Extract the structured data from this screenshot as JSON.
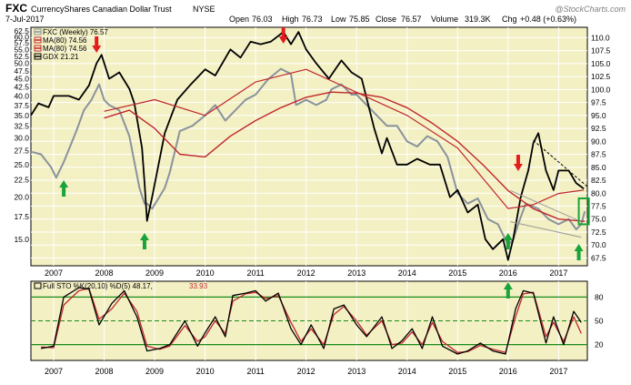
{
  "header": {
    "symbol": "FXC",
    "name": "CurrencyShares Canadian Dollar Trust",
    "exchange": "NYSE",
    "date": "7-Jul-2017",
    "open_label": "Open",
    "open": "76.03",
    "high_label": "High",
    "high": "76.73",
    "low_label": "Low",
    "low": "75.85",
    "close_label": "Close",
    "close": "76.57",
    "volume_label": "Volume",
    "volume": "319.3K",
    "chg_label": "Chg",
    "chg": "+0.48 (+0.63%)",
    "logo": "@StockCharts.com"
  },
  "colors": {
    "background": "#ffffff",
    "panel_bg": "#f3f0c4",
    "fxc": "#8a939c",
    "gdx": "#000000",
    "ma80": "#c0272d",
    "sto_k": "#000000",
    "sto_d": "#c0272d",
    "sto_level": "#1a8c1a",
    "down_arrow": "#e31d1d",
    "up_arrow": "#1aa33a",
    "box": "#1aa33a",
    "trend": "#000000",
    "channel": "#999999"
  },
  "chart_data": [
    {
      "type": "line",
      "legend": [
        {
          "label": "FXC (Weekly) 76.57",
          "color": "#8a939c"
        },
        {
          "label": "MA(80) 74.56",
          "color": "#c0272d"
        },
        {
          "label": "MA(80) 74.56",
          "color": "#c0272d"
        },
        {
          "label": "GDX 21.21",
          "color": "#000000"
        }
      ],
      "x_ticks": [
        "2007",
        "2008",
        "2009",
        "2010",
        "2011",
        "2012",
        "2013",
        "2014",
        "2015",
        "2016",
        "2017"
      ],
      "x_range": [
        2006.55,
        2017.57
      ],
      "left_axis_ticks": [
        "62.5",
        "60.0",
        "57.5",
        "55.0",
        "52.5",
        "50.0",
        "47.5",
        "45.0",
        "42.5",
        "40.0",
        "37.5",
        "35.0",
        "32.5",
        "30.0",
        "27.5",
        "25.0",
        "22.5",
        "20.0",
        "17.5",
        "15.0"
      ],
      "left_axis_range": [
        12.5,
        64
      ],
      "left_axis_scale": "log",
      "right_axis_ticks": [
        "110.0",
        "107.5",
        "105.0",
        "102.5",
        "100.0",
        "97.5",
        "95.0",
        "92.5",
        "90.0",
        "87.5",
        "85.0",
        "82.5",
        "80.0",
        "77.5",
        "75.0",
        "72.5",
        "70.0",
        "67.5"
      ],
      "right_axis_range": [
        66,
        112
      ],
      "series": [
        {
          "name": "FXC (Weekly)",
          "axis": "right",
          "x": [
            2006.55,
            2006.75,
            2006.95,
            2007.05,
            2007.2,
            2007.45,
            2007.6,
            2007.75,
            2007.85,
            2007.9,
            2008.0,
            2008.1,
            2008.3,
            2008.5,
            2008.6,
            2008.7,
            2008.8,
            2008.85,
            2008.95,
            2009.2,
            2009.3,
            2009.5,
            2009.75,
            2010.0,
            2010.2,
            2010.4,
            2010.6,
            2010.8,
            2011.0,
            2011.25,
            2011.5,
            2011.7,
            2011.8,
            2012.0,
            2012.2,
            2012.4,
            2012.5,
            2012.7,
            2012.9,
            2013.0,
            2013.2,
            2013.4,
            2013.6,
            2013.8,
            2014.0,
            2014.2,
            2014.4,
            2014.6,
            2014.8,
            2015.0,
            2015.2,
            2015.4,
            2015.6,
            2015.8,
            2016.0,
            2016.1,
            2016.2,
            2016.35,
            2016.6,
            2016.8,
            2017.0,
            2017.2,
            2017.35,
            2017.45,
            2017.52
          ],
          "y": [
            88,
            87.5,
            85,
            83,
            86,
            92,
            96,
            98,
            100,
            101,
            98,
            97,
            96,
            91,
            86,
            81,
            78,
            78,
            77,
            81,
            84,
            92,
            93,
            95,
            97,
            94,
            96,
            98,
            99,
            102,
            104,
            103,
            97,
            98,
            97,
            98,
            100,
            101,
            99,
            99,
            97,
            95,
            93,
            93,
            90,
            89,
            91,
            90,
            87,
            80,
            78,
            79,
            75,
            74,
            70,
            71,
            74,
            78,
            77,
            75,
            74,
            75,
            73,
            74,
            76.5
          ]
        },
        {
          "name": "MA(80)",
          "axis": "right",
          "x": [
            2008.0,
            2008.5,
            2009.0,
            2009.5,
            2010.0,
            2010.5,
            2011.0,
            2011.5,
            2012.0,
            2012.5,
            2013.0,
            2013.5,
            2014.0,
            2014.5,
            2015.0,
            2015.5,
            2016.0,
            2016.5,
            2017.0,
            2017.52
          ],
          "y": [
            94.5,
            96,
            92.5,
            87.5,
            87,
            91,
            94,
            96.5,
            98.5,
            99.5,
            99.3,
            98.5,
            96.5,
            93.5,
            90,
            85.5,
            80.5,
            77,
            75,
            74.56
          ]
        },
        {
          "name": "GDX",
          "axis": "left",
          "x": [
            2006.55,
            2006.7,
            2006.9,
            2007.0,
            2007.3,
            2007.5,
            2007.7,
            2007.85,
            2007.95,
            2008.1,
            2008.3,
            2008.5,
            2008.6,
            2008.75,
            2008.8,
            2008.85,
            2008.95,
            2009.2,
            2009.45,
            2009.7,
            2010.0,
            2010.2,
            2010.5,
            2010.7,
            2010.9,
            2011.1,
            2011.3,
            2011.55,
            2011.7,
            2011.85,
            2012.0,
            2012.2,
            2012.45,
            2012.7,
            2012.9,
            2013.1,
            2013.35,
            2013.5,
            2013.6,
            2013.8,
            2014.0,
            2014.2,
            2014.45,
            2014.65,
            2014.85,
            2015.0,
            2015.2,
            2015.4,
            2015.55,
            2015.7,
            2015.9,
            2016.0,
            2016.1,
            2016.25,
            2016.4,
            2016.5,
            2016.6,
            2016.75,
            2016.9,
            2017.0,
            2017.2,
            2017.35,
            2017.5
          ],
          "y": [
            35,
            38,
            37,
            40,
            40,
            39,
            43,
            50,
            53,
            45,
            47,
            42,
            38,
            28,
            22,
            17,
            20,
            31,
            39,
            43,
            48,
            46,
            55,
            52,
            58,
            57,
            58,
            62,
            57,
            62,
            55,
            50,
            45,
            51,
            47,
            45,
            32,
            27,
            30,
            25,
            25,
            26,
            25,
            25,
            20,
            21,
            18,
            19,
            15,
            14,
            15,
            13,
            15,
            20,
            24,
            29,
            31,
            24,
            21,
            24,
            24,
            22,
            21.2
          ]
        },
        {
          "name": "MA(80)",
          "axis": "left",
          "x": [
            2008.0,
            2009.0,
            2010.0,
            2011.0,
            2012.0,
            2013.0,
            2014.0,
            2015.0,
            2016.0,
            2016.5,
            2017.0,
            2017.5
          ],
          "y": [
            36,
            39,
            35,
            44,
            48,
            41,
            35,
            28,
            18.5,
            19,
            20.5,
            21
          ]
        }
      ],
      "annotations": {
        "down_arrows_x": [
          2007.85,
          2011.55,
          2016.2
        ],
        "up_arrows_x": [
          2007.2,
          2008.8,
          2016.0,
          2017.4
        ],
        "resistance_line": {
          "x": [
            2016.5,
            2017.57
          ],
          "y_left": [
            29.5,
            21.5
          ]
        },
        "channel_upper": {
          "x": [
            2016.05,
            2017.45
          ],
          "y_right": [
            80.5,
            74.5
          ]
        },
        "channel_lower": {
          "x": [
            2016.05,
            2017.45
          ],
          "y_right": [
            74.5,
            71.5
          ]
        },
        "box": {
          "x": [
            2017.4,
            2017.6
          ],
          "y_right": [
            74,
            79
          ]
        }
      }
    },
    {
      "type": "line",
      "legend": [
        {
          "label": "Full STO %K(20,10) %D(5) 48.17,",
          "color": "#000000"
        },
        {
          "label": "33.93",
          "color": "#c0272d"
        }
      ],
      "x_ticks": [
        "2007",
        "2008",
        "2009",
        "2010",
        "2011",
        "2012",
        "2013",
        "2014",
        "2015",
        "2016",
        "2017"
      ],
      "y_ticks": [
        "80",
        "50",
        "20"
      ],
      "y_range": [
        0,
        100
      ],
      "levels": [
        80,
        50,
        20
      ],
      "series": [
        {
          "name": "%K",
          "x": [
            2006.75,
            2007.0,
            2007.2,
            2007.5,
            2007.7,
            2007.9,
            2008.15,
            2008.4,
            2008.65,
            2008.85,
            2009.1,
            2009.3,
            2009.6,
            2009.85,
            2010.0,
            2010.2,
            2010.4,
            2010.55,
            2010.8,
            2011.0,
            2011.2,
            2011.45,
            2011.7,
            2011.9,
            2012.1,
            2012.35,
            2012.55,
            2012.75,
            2013.0,
            2013.2,
            2013.5,
            2013.7,
            2013.9,
            2014.1,
            2014.3,
            2014.5,
            2014.7,
            2015.0,
            2015.2,
            2015.45,
            2015.7,
            2015.95,
            2016.15,
            2016.3,
            2016.5,
            2016.75,
            2016.9,
            2017.1,
            2017.3,
            2017.45
          ],
          "y": [
            15,
            18,
            80,
            92,
            90,
            45,
            72,
            88,
            55,
            12,
            15,
            20,
            50,
            18,
            35,
            55,
            30,
            82,
            85,
            88,
            75,
            85,
            40,
            20,
            45,
            15,
            65,
            70,
            45,
            30,
            55,
            15,
            25,
            40,
            15,
            55,
            18,
            8,
            12,
            22,
            12,
            8,
            65,
            88,
            85,
            22,
            55,
            20,
            62,
            48
          ]
        },
        {
          "name": "%D",
          "x": [
            2006.75,
            2007.0,
            2007.2,
            2007.5,
            2007.7,
            2007.9,
            2008.15,
            2008.4,
            2008.65,
            2008.85,
            2009.1,
            2009.3,
            2009.6,
            2009.85,
            2010.0,
            2010.2,
            2010.4,
            2010.55,
            2010.8,
            2011.0,
            2011.2,
            2011.45,
            2011.7,
            2011.9,
            2012.1,
            2012.35,
            2012.55,
            2012.75,
            2013.0,
            2013.2,
            2013.5,
            2013.7,
            2013.9,
            2014.1,
            2014.3,
            2014.5,
            2014.7,
            2015.0,
            2015.2,
            2015.45,
            2015.7,
            2015.95,
            2016.15,
            2016.3,
            2016.5,
            2016.75,
            2016.9,
            2017.1,
            2017.3,
            2017.45
          ],
          "y": [
            17,
            16,
            70,
            88,
            91,
            52,
            65,
            85,
            62,
            18,
            14,
            18,
            44,
            24,
            30,
            50,
            34,
            75,
            84,
            86,
            78,
            82,
            48,
            24,
            40,
            20,
            58,
            68,
            50,
            32,
            50,
            20,
            22,
            36,
            20,
            48,
            24,
            10,
            11,
            19,
            14,
            10,
            55,
            84,
            86,
            30,
            48,
            24,
            55,
            34
          ]
        }
      ],
      "annotations": {
        "up_arrows_x": [
          2016.0
        ]
      }
    }
  ]
}
